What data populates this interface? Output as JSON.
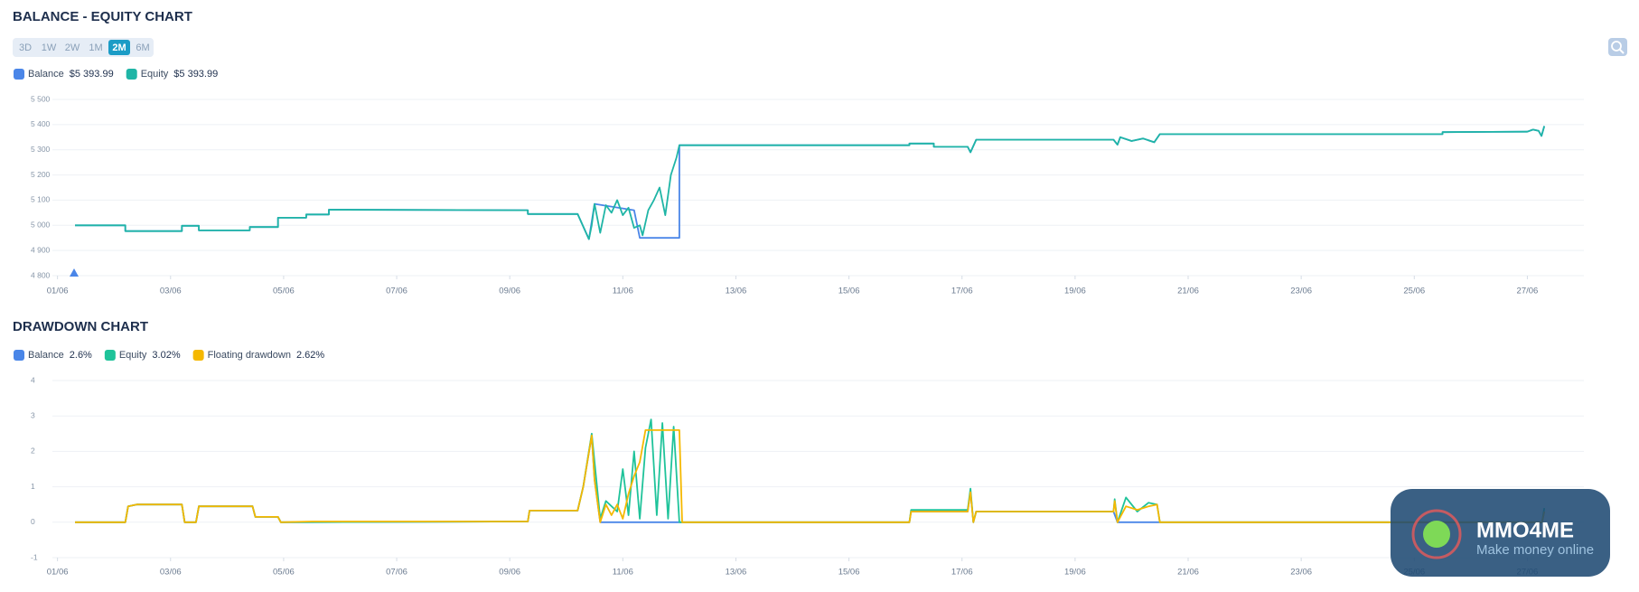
{
  "chart_data": [
    {
      "type": "line",
      "title": "BALANCE - EQUITY CHART",
      "grid": true,
      "xlim": [
        0.91,
        28.0
      ],
      "xticks": [
        {
          "value": 1,
          "label": "01/06"
        },
        {
          "value": 3,
          "label": "03/06"
        },
        {
          "value": 5,
          "label": "05/06"
        },
        {
          "value": 7,
          "label": "07/06"
        },
        {
          "value": 9,
          "label": "09/06"
        },
        {
          "value": 11,
          "label": "11/06"
        },
        {
          "value": 13,
          "label": "13/06"
        },
        {
          "value": 15,
          "label": "15/06"
        },
        {
          "value": 17,
          "label": "17/06"
        },
        {
          "value": 19,
          "label": "19/06"
        },
        {
          "value": 21,
          "label": "21/06"
        },
        {
          "value": 23,
          "label": "23/06"
        },
        {
          "value": 25,
          "label": "25/06"
        },
        {
          "value": 27,
          "label": "27/06"
        }
      ],
      "ylim": [
        4800,
        5500
      ],
      "yticks": [
        {
          "value": 4800,
          "label": "4 800"
        },
        {
          "value": 4900,
          "label": "4 900"
        },
        {
          "value": 5000,
          "label": "5 000"
        },
        {
          "value": 5100,
          "label": "5 100"
        },
        {
          "value": 5200,
          "label": "5 200"
        },
        {
          "value": 5300,
          "label": "5 300"
        },
        {
          "value": 5400,
          "label": "5 400"
        },
        {
          "value": 5500,
          "label": "5 500"
        }
      ],
      "series": [
        {
          "name": "Balance",
          "legend_value": "$5 393.99",
          "color": "#4a86e8",
          "x": [
            1.31,
            2.2,
            2.2,
            3.2,
            3.2,
            3.5,
            3.5,
            4.4,
            4.4,
            4.9,
            4.9,
            5.4,
            5.4,
            5.8,
            5.8,
            9.32,
            9.32,
            10.2,
            10.4,
            10.5,
            11.2,
            11.3,
            12.0,
            12.0,
            16.07,
            16.07,
            16.5,
            16.5,
            17.1,
            17.15,
            17.25,
            19.68,
            19.75,
            19.8,
            20.0,
            20.2,
            20.4,
            20.5,
            25.5,
            25.5,
            27.0,
            27.1,
            27.2,
            27.25,
            27.3
          ],
          "values": [
            5000,
            5000,
            4977,
            4977,
            4998,
            4998,
            4980,
            4980,
            4993,
            4993,
            5030,
            5030,
            5043,
            5043,
            5062,
            5060,
            5045,
            5045,
            4945,
            5085,
            5060,
            4950,
            4950,
            5318,
            5318,
            5325,
            5325,
            5312,
            5312,
            5290,
            5340,
            5340,
            5320,
            5350,
            5335,
            5345,
            5330,
            5362,
            5362,
            5370,
            5372,
            5380,
            5375,
            5355,
            5394
          ]
        },
        {
          "name": "Equity",
          "legend_value": "$5 393.99",
          "color": "#1fb5a6",
          "x": [
            1.31,
            2.2,
            2.2,
            3.2,
            3.2,
            3.5,
            3.5,
            4.4,
            4.4,
            4.9,
            4.9,
            5.4,
            5.4,
            5.8,
            5.8,
            9.32,
            9.32,
            10.2,
            10.4,
            10.45,
            10.5,
            10.6,
            10.7,
            10.8,
            10.9,
            11.0,
            11.1,
            11.2,
            11.3,
            11.35,
            11.45,
            11.55,
            11.65,
            11.75,
            11.85,
            11.95,
            12.0,
            16.07,
            16.07,
            16.5,
            16.5,
            17.1,
            17.15,
            17.25,
            19.68,
            19.75,
            19.8,
            20.0,
            20.2,
            20.4,
            20.5,
            25.5,
            25.5,
            27.0,
            27.1,
            27.2,
            27.25,
            27.3
          ],
          "values": [
            5000,
            5000,
            4977,
            4977,
            4998,
            4998,
            4980,
            4980,
            4993,
            4993,
            5030,
            5030,
            5043,
            5043,
            5062,
            5060,
            5045,
            5045,
            4945,
            5000,
            5085,
            4970,
            5080,
            5050,
            5100,
            5040,
            5070,
            4990,
            5000,
            4960,
            5060,
            5100,
            5150,
            5040,
            5200,
            5270,
            5318,
            5318,
            5325,
            5325,
            5312,
            5312,
            5290,
            5340,
            5340,
            5320,
            5350,
            5335,
            5345,
            5330,
            5362,
            5362,
            5370,
            5372,
            5380,
            5375,
            5355,
            5394
          ]
        }
      ]
    },
    {
      "type": "line",
      "title": "DRAWDOWN CHART",
      "grid": true,
      "xlim": [
        0.91,
        28.0
      ],
      "xticks": [
        {
          "value": 1,
          "label": "01/06"
        },
        {
          "value": 3,
          "label": "03/06"
        },
        {
          "value": 5,
          "label": "05/06"
        },
        {
          "value": 7,
          "label": "07/06"
        },
        {
          "value": 9,
          "label": "09/06"
        },
        {
          "value": 11,
          "label": "11/06"
        },
        {
          "value": 13,
          "label": "13/06"
        },
        {
          "value": 15,
          "label": "15/06"
        },
        {
          "value": 17,
          "label": "17/06"
        },
        {
          "value": 19,
          "label": "19/06"
        },
        {
          "value": 21,
          "label": "21/06"
        },
        {
          "value": 23,
          "label": "23/06"
        },
        {
          "value": 25,
          "label": "25/06"
        },
        {
          "value": 27,
          "label": "27/06"
        }
      ],
      "ylim": [
        -1,
        4
      ],
      "yticks": [
        -1,
        0,
        1,
        2,
        3,
        4
      ],
      "series": [
        {
          "name": "Balance",
          "legend_value": "2.6%",
          "color": "#4a86e8",
          "x": [
            1.31,
            2.2,
            2.25,
            2.4,
            3.2,
            3.25,
            3.45,
            3.5,
            4.45,
            4.5,
            4.9,
            4.95,
            9.32,
            9.35,
            10.2,
            10.3,
            10.45,
            10.5,
            10.6,
            12.05,
            16.07,
            16.1,
            17.1,
            17.15,
            17.2,
            17.25,
            19.68,
            19.75,
            20.5,
            27.26,
            27.3
          ],
          "values": [
            0,
            0,
            0.45,
            0.5,
            0.5,
            0,
            0,
            0.45,
            0.45,
            0.15,
            0.15,
            0,
            0.02,
            0.33,
            0.33,
            1.0,
            2.45,
            1.2,
            0,
            0,
            0,
            0.3,
            0.3,
            0.85,
            0,
            0.3,
            0.3,
            0,
            0,
            0,
            0.3
          ]
        },
        {
          "name": "Equity",
          "legend_value": "3.02%",
          "color": "#1fc39a",
          "x": [
            1.31,
            2.2,
            2.25,
            2.4,
            3.2,
            3.25,
            3.45,
            3.5,
            4.45,
            4.5,
            4.9,
            4.95,
            9.32,
            9.35,
            10.2,
            10.3,
            10.45,
            10.6,
            10.7,
            10.9,
            11.0,
            11.1,
            11.2,
            11.3,
            11.4,
            11.5,
            11.6,
            11.7,
            11.8,
            11.9,
            12.0,
            16.07,
            16.1,
            17.1,
            17.15,
            17.2,
            17.25,
            19.68,
            19.7,
            19.75,
            19.9,
            20.1,
            20.3,
            20.45,
            20.5,
            27.26,
            27.3
          ],
          "values": [
            0,
            0,
            0.45,
            0.5,
            0.5,
            0,
            0,
            0.45,
            0.45,
            0.15,
            0.15,
            0,
            0.02,
            0.33,
            0.33,
            1.0,
            2.5,
            0.1,
            0.6,
            0.3,
            1.5,
            0.2,
            2.0,
            0.1,
            2.1,
            2.9,
            0.2,
            2.8,
            0.1,
            2.7,
            0,
            0,
            0.35,
            0.35,
            0.95,
            0,
            0.3,
            0.3,
            0.65,
            0,
            0.7,
            0.3,
            0.55,
            0.5,
            0,
            0,
            0.4
          ]
        },
        {
          "name": "Floating drawdown",
          "legend_value": "2.62%",
          "color": "#f5b800",
          "x": [
            1.31,
            2.2,
            2.25,
            2.4,
            3.2,
            3.25,
            3.45,
            3.5,
            4.45,
            4.5,
            4.9,
            4.95,
            5.5,
            9.32,
            9.35,
            10.2,
            10.3,
            10.45,
            10.5,
            10.6,
            10.7,
            10.8,
            10.9,
            11.0,
            11.1,
            11.2,
            11.3,
            11.4,
            12.0,
            12.05,
            16.07,
            16.1,
            17.1,
            17.15,
            17.2,
            17.25,
            19.68,
            19.7,
            19.75,
            19.9,
            20.1,
            20.3,
            20.45,
            20.5,
            27.26,
            27.3
          ],
          "values": [
            0,
            0,
            0.45,
            0.5,
            0.5,
            0,
            0,
            0.45,
            0.45,
            0.15,
            0.15,
            0,
            0.02,
            0.02,
            0.33,
            0.33,
            1.0,
            2.45,
            1.2,
            0,
            0.5,
            0.2,
            0.5,
            0.1,
            0.8,
            1.3,
            1.7,
            2.6,
            2.6,
            0,
            0,
            0.3,
            0.3,
            0.85,
            0,
            0.3,
            0.3,
            0.6,
            0,
            0.45,
            0.35,
            0.45,
            0.5,
            0,
            0,
            0.3
          ]
        }
      ]
    }
  ],
  "controls": {
    "ranges": [
      "3D",
      "1W",
      "2W",
      "1M",
      "2M",
      "6M"
    ],
    "active": "2M"
  },
  "watermark": {
    "title": "MMO4ME",
    "subtitle": "Make money online"
  }
}
